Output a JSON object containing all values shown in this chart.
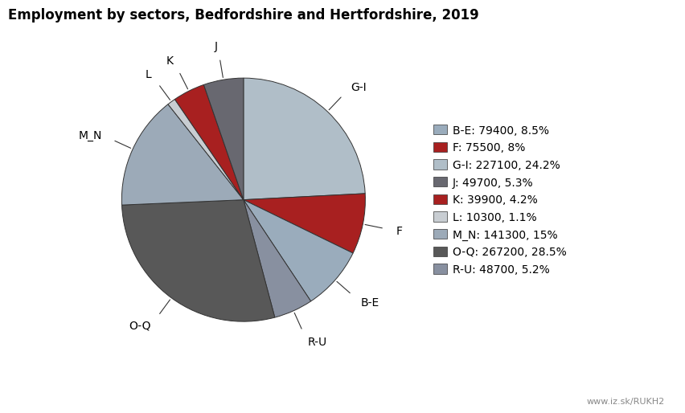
{
  "title": "Employment by sectors, Bedfordshire and Hertfordshire, 2019",
  "watermark": "www.iz.sk/RUKH2",
  "sectors": [
    "G-I",
    "F",
    "B-E",
    "R-U",
    "O-Q",
    "M_N",
    "L",
    "K",
    "J"
  ],
  "values": [
    227100,
    75500,
    79400,
    48700,
    267200,
    141300,
    10300,
    39900,
    49700
  ],
  "colors": [
    "#b0bec8",
    "#a82020",
    "#9aacbc",
    "#8890a0",
    "#585858",
    "#9caab8",
    "#c8cdd2",
    "#a82020",
    "#686870"
  ],
  "legend_order": [
    "B-E",
    "F",
    "G-I",
    "J",
    "K",
    "L",
    "M_N",
    "O-Q",
    "R-U"
  ],
  "legend_colors": [
    "#9aacbc",
    "#a82020",
    "#b0bec8",
    "#686870",
    "#a82020",
    "#c8cdd2",
    "#9caab8",
    "#585858",
    "#8890a0"
  ],
  "legend_texts": [
    "B-E: 79400, 8.5%",
    "F: 75500, 8%",
    "G-I: 227100, 24.2%",
    "J: 49700, 5.3%",
    "K: 39900, 4.2%",
    "L: 10300, 1.1%",
    "M_N: 141300, 15%",
    "O-Q: 267200, 28.5%",
    "R-U: 48700, 5.2%"
  ],
  "background_color": "#ffffff",
  "title_fontsize": 12,
  "label_fontsize": 10,
  "legend_fontsize": 10,
  "startangle": 90
}
